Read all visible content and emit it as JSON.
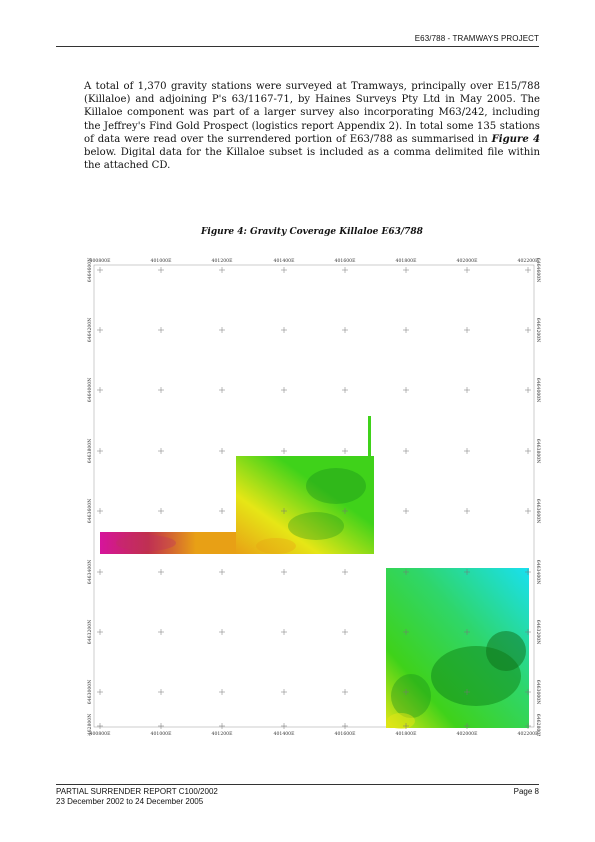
{
  "header": {
    "project": "E63/788 - TRAMWAYS PROJECT"
  },
  "body": {
    "paragraph_lead": "A total of 1,370 gravity stations were surveyed at Tramways, principally over E15/788 (Killaloe) and adjoining P's 63/1167-71, by Haines Surveys Pty Ltd in May 2005.  The Killaloe component was part of a larger survey also incorporating M63/242, including the Jeffrey's Find Gold Prospect (logistics report Appendix 2).  In total some 135 stations of data were read over the surrendered portion of E63/788 as summarised in ",
    "figure_ref": "Figure 4",
    "paragraph_tail": " below.  Digital data for the Killaloe subset is included as a comma delimited file within the attached CD."
  },
  "figure": {
    "caption": "Figure 4: Gravity Coverage Killaloe E63/788",
    "easting_labels": [
      "400800E",
      "401000E",
      "401200E",
      "401400E",
      "401600E",
      "401800E",
      "402000E",
      "402200E"
    ],
    "northing_labels": [
      "6464600N",
      "6464200N",
      "6464000N",
      "6463800N",
      "6463600N",
      "6463400N",
      "6463200N",
      "6463000N",
      "6462800N"
    ],
    "colors": {
      "low": "#d6149c",
      "mid_low": "#e8a015",
      "mid": "#e6e616",
      "mid_high": "#3fd21a",
      "dark": "#138a1c",
      "high": "#19e0f0",
      "grid_cross": "#777777"
    }
  },
  "footer": {
    "report": "PARTIAL SURRENDER REPORT C100/2002",
    "period": "23 December 2002 to 24 December 2005",
    "page": "Page 8"
  }
}
